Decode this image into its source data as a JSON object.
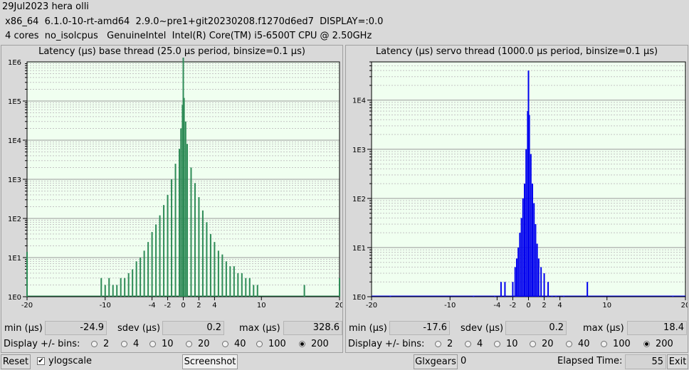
{
  "header": {
    "line1": "29Jul2023 hera olli",
    "line2": " x86_64  6.1.0-10-rt-amd64  2.9.0~pre1+git20230208.f1270d6ed7  DISPLAY=:0.0",
    "line3": " 4 cores  no_isolcpus   GenuineIntel  Intel(R) Core(TM) i5-6500T CPU @ 2.50GHz"
  },
  "base": {
    "title": "Latency (µs) base thread (25.0 µs period, binsize=0.1 µs)",
    "min_label": "min (µs)",
    "min": "-24.9",
    "sdev_label": "sdev (µs)",
    "sdev": "0.2",
    "max_label": "max (µs)",
    "max": "328.6"
  },
  "servo": {
    "title": "Latency (µs) servo thread (1000.0 µs period, binsize=0.1 µs)",
    "min_label": "min (µs)",
    "min": "-17.6",
    "sdev_label": "sdev (µs)",
    "sdev": "0.2",
    "max_label": "max (µs)",
    "max": "18.4"
  },
  "bins": {
    "label": "Display +/- bins:",
    "options": [
      "2",
      "4",
      "10",
      "20",
      "40",
      "100",
      "200"
    ],
    "selected": "200"
  },
  "bottom": {
    "reset": "Reset",
    "ylogscale": "ylogscale",
    "ylogscale_checked": true,
    "screenshot": "Screenshot",
    "glxgears": "Glxgears",
    "glxgears_count": "0",
    "elapsed_label": "Elapsed Time:",
    "elapsed": "55",
    "exit": "Exit"
  },
  "chart_data": [
    {
      "type": "bar",
      "title": "Latency (µs) base thread (25.0 µs period, binsize=0.1 µs)",
      "color": "#2e8b57",
      "xlim": [
        -20,
        20
      ],
      "x_ticks": [
        "-20",
        "-10",
        "-4",
        "-2",
        "0",
        "2",
        "4",
        "10",
        "20"
      ],
      "y_scale": "log",
      "ylim": [
        1,
        1000000
      ],
      "y_ticks": [
        "1E0",
        "1E1",
        "1E2",
        "1E3",
        "1E4",
        "1E5",
        "1E6"
      ],
      "grid": true,
      "x": [
        -20,
        -10.5,
        -10,
        -9.5,
        -9,
        -8.5,
        -8,
        -7.5,
        -7,
        -6.5,
        -6,
        -5.5,
        -5,
        -4.5,
        -4,
        -3.5,
        -3,
        -2.5,
        -2,
        -1.5,
        -1,
        -0.5,
        -0.3,
        -0.1,
        0,
        0.1,
        0.3,
        0.5,
        1,
        1.5,
        2,
        2.5,
        3,
        3.5,
        4,
        4.5,
        5,
        5.5,
        6,
        6.5,
        7,
        7.5,
        8,
        8.5,
        9,
        9.5,
        15.5,
        20
      ],
      "values": [
        14,
        3,
        2,
        3,
        2,
        2,
        3,
        3,
        4,
        5,
        8,
        10,
        15,
        25,
        45,
        70,
        120,
        220,
        400,
        1000,
        2500,
        6000,
        20000,
        80000,
        1500000,
        120000,
        30000,
        8000,
        2000,
        800,
        350,
        160,
        80,
        40,
        25,
        15,
        12,
        8,
        6,
        6,
        4,
        4,
        3,
        3,
        2,
        2,
        2,
        3
      ]
    },
    {
      "type": "bar",
      "title": "Latency (µs) servo thread (1000.0 µs period, binsize=0.1 µs)",
      "color": "#0000ee",
      "xlim": [
        -20,
        20
      ],
      "x_ticks": [
        "-20",
        "-10",
        "-4",
        "-2",
        "0",
        "2",
        "4",
        "10",
        "20"
      ],
      "y_scale": "log",
      "ylim": [
        1,
        60000
      ],
      "y_ticks": [
        "1E0",
        "1E1",
        "1E2",
        "1E3",
        "1E4"
      ],
      "grid": true,
      "x": [
        -17.6,
        -7,
        -4.3,
        -3.5,
        -3,
        -2,
        -1.7,
        -1.5,
        -1.3,
        -1.1,
        -0.9,
        -0.7,
        -0.5,
        -0.3,
        -0.1,
        0,
        0.1,
        0.3,
        0.5,
        0.7,
        0.9,
        1.1,
        1.3,
        1.6,
        2,
        2.5,
        3,
        3.5,
        4.5,
        7.5,
        18.4
      ],
      "values": [
        1,
        1,
        1,
        2,
        2,
        2,
        4,
        6,
        10,
        20,
        40,
        100,
        200,
        1000,
        6000,
        40000,
        5000,
        800,
        200,
        80,
        30,
        12,
        6,
        4,
        3,
        2,
        1,
        1,
        1,
        2,
        1
      ]
    }
  ]
}
